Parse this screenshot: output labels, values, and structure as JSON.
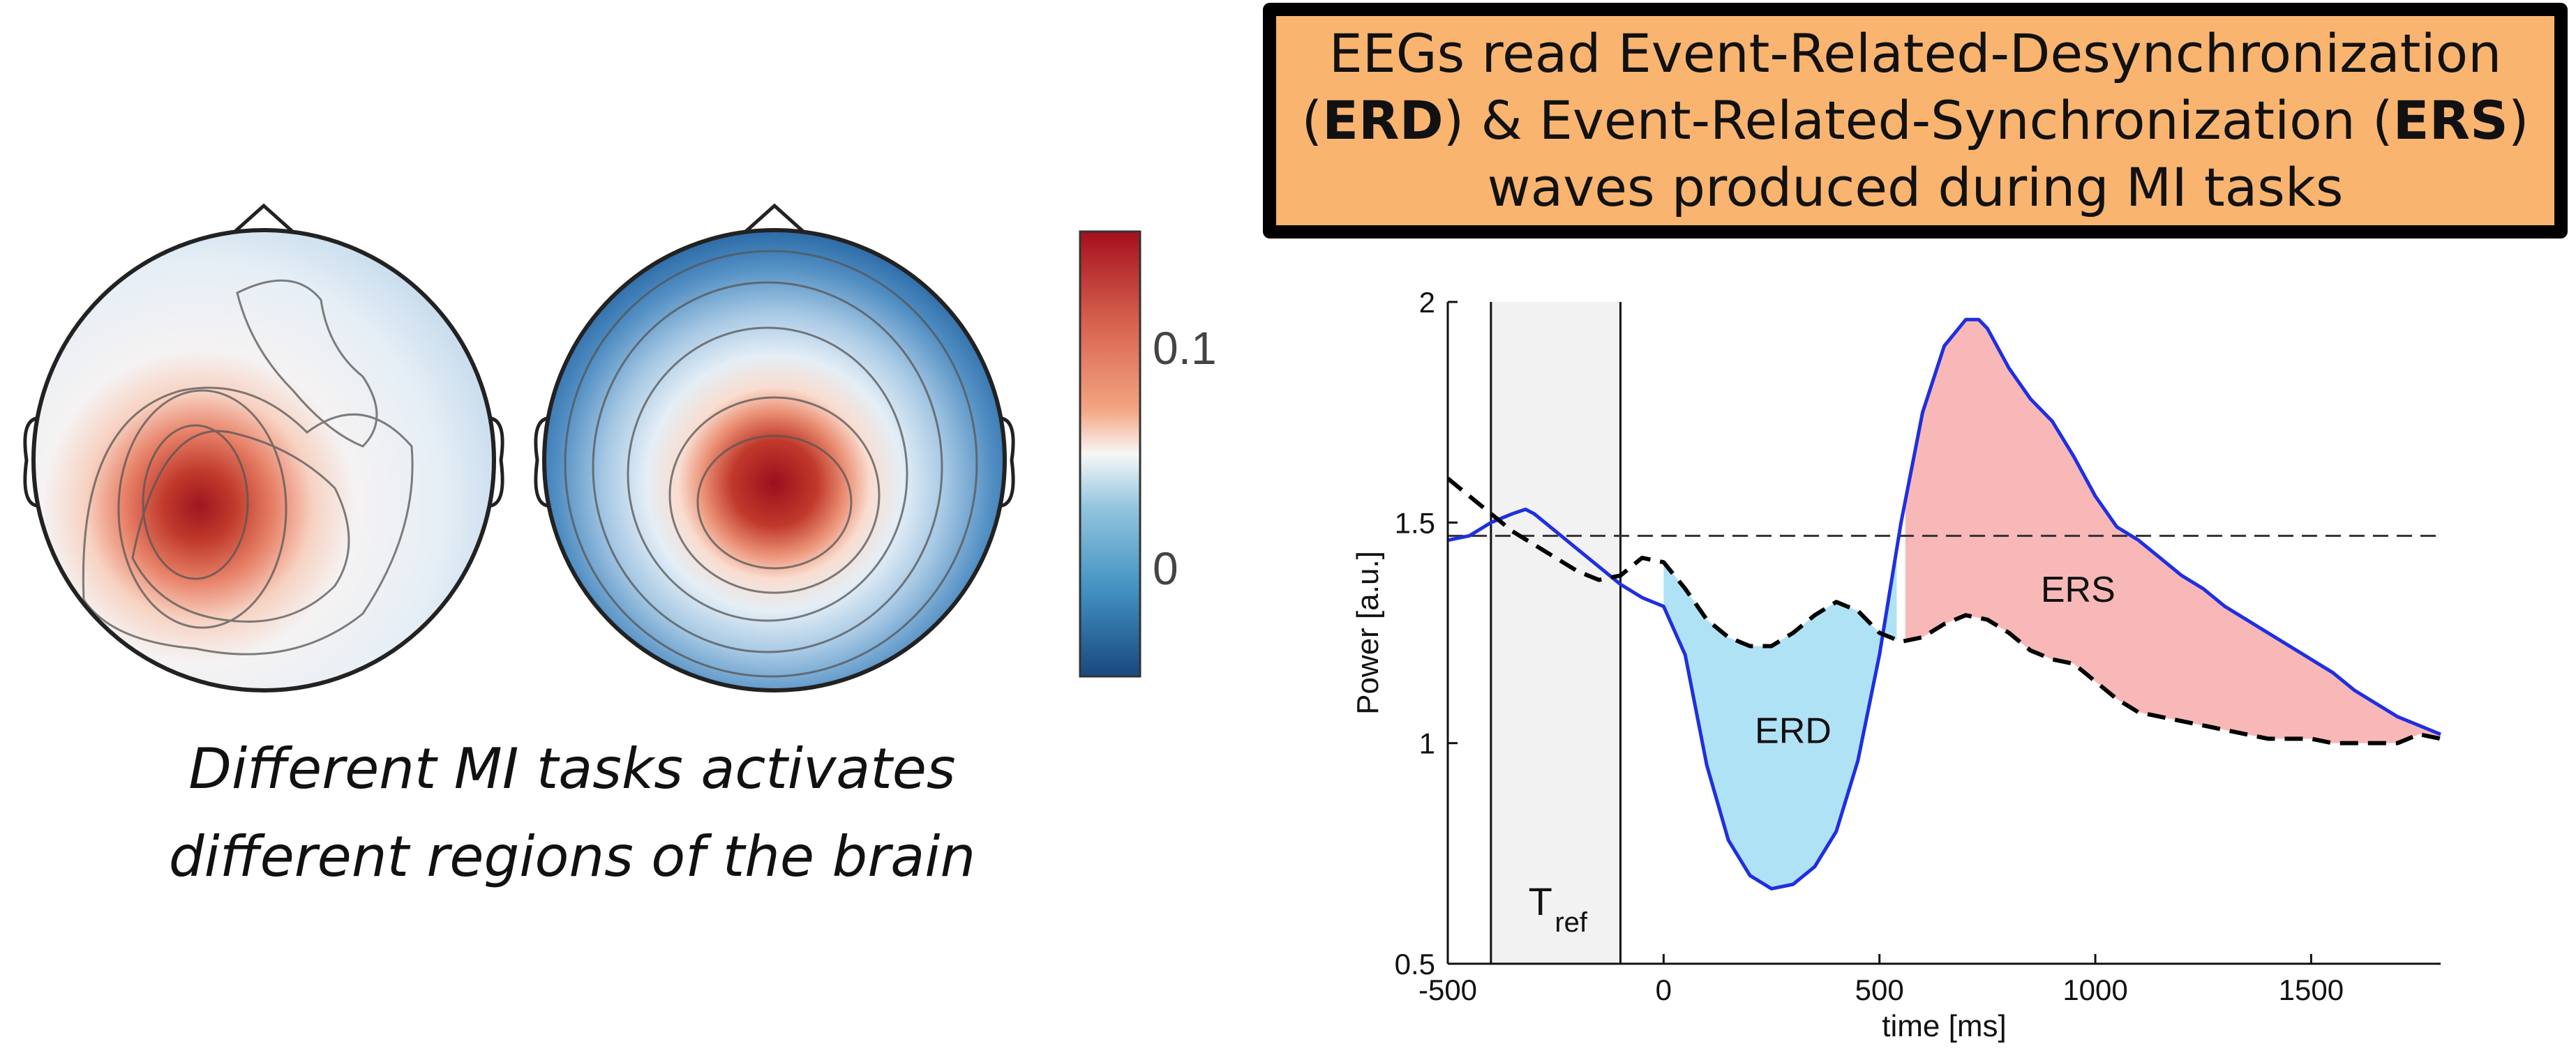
{
  "callout": {
    "line1": "EEGs read Event-Related-Desynchronization",
    "line2_open": "(",
    "line2_erd": "ERD",
    "line2_mid": ") & Event-Related-Synchronization (",
    "line2_ers": "ERS",
    "line2_close": ")",
    "line3": "waves produced during MI tasks"
  },
  "caption": {
    "line1": "Different MI tasks activates",
    "line2": "different regions of the brain"
  },
  "colorbar": {
    "tick_high": "0.1",
    "tick_low": "0",
    "colors": [
      "#B2182B",
      "#EF8A62",
      "#FDDBC7",
      "#F7F7F7",
      "#D1E5F0",
      "#67A9CF",
      "#2166AC"
    ]
  },
  "chart_data": {
    "type": "line",
    "xlabel": "time [ms]",
    "ylabel": "Power [a.u.]",
    "xlim": [
      -500,
      1800
    ],
    "ylim": [
      0.5,
      2
    ],
    "xticks": [
      -500,
      0,
      500,
      1000,
      1500
    ],
    "yticks": [
      0.5,
      1,
      1.5,
      2
    ],
    "ytick_labels": [
      "0.5",
      "1",
      "1.5",
      "2"
    ],
    "reference_level": 1.47,
    "reference_window": {
      "start": -400,
      "end": -100,
      "label_main": "T",
      "label_sub": "ref"
    },
    "series": [
      {
        "style": "solid",
        "color": "#1F2FE0",
        "x": [
          -500,
          -450,
          -400,
          -350,
          -320,
          -300,
          -250,
          -200,
          -150,
          -100,
          -50,
          0,
          50,
          100,
          150,
          200,
          250,
          300,
          350,
          400,
          450,
          500,
          550,
          600,
          650,
          700,
          730,
          750,
          800,
          850,
          900,
          950,
          1000,
          1050,
          1100,
          1150,
          1200,
          1250,
          1300,
          1350,
          1400,
          1450,
          1500,
          1550,
          1600,
          1650,
          1700,
          1750,
          1800
        ],
        "y": [
          1.46,
          1.47,
          1.5,
          1.52,
          1.53,
          1.52,
          1.48,
          1.44,
          1.4,
          1.36,
          1.33,
          1.31,
          1.2,
          0.95,
          0.78,
          0.7,
          0.67,
          0.68,
          0.72,
          0.8,
          0.96,
          1.2,
          1.5,
          1.75,
          1.9,
          1.96,
          1.96,
          1.94,
          1.85,
          1.78,
          1.73,
          1.65,
          1.56,
          1.49,
          1.46,
          1.42,
          1.38,
          1.35,
          1.31,
          1.28,
          1.25,
          1.22,
          1.19,
          1.16,
          1.12,
          1.09,
          1.06,
          1.04,
          1.02
        ]
      },
      {
        "style": "dashed",
        "color": "#000000",
        "x": [
          -500,
          -450,
          -400,
          -350,
          -300,
          -250,
          -200,
          -150,
          -100,
          -50,
          0,
          50,
          100,
          150,
          200,
          250,
          300,
          350,
          400,
          450,
          500,
          550,
          600,
          650,
          700,
          750,
          800,
          850,
          900,
          950,
          1000,
          1050,
          1100,
          1150,
          1200,
          1250,
          1300,
          1350,
          1400,
          1450,
          1500,
          1550,
          1600,
          1650,
          1700,
          1750,
          1800
        ],
        "y": [
          1.6,
          1.56,
          1.52,
          1.48,
          1.45,
          1.42,
          1.39,
          1.37,
          1.38,
          1.42,
          1.41,
          1.35,
          1.28,
          1.24,
          1.22,
          1.22,
          1.25,
          1.29,
          1.32,
          1.3,
          1.25,
          1.23,
          1.24,
          1.27,
          1.29,
          1.28,
          1.25,
          1.21,
          1.19,
          1.18,
          1.14,
          1.1,
          1.07,
          1.06,
          1.05,
          1.04,
          1.03,
          1.02,
          1.01,
          1.01,
          1.01,
          1.0,
          1.0,
          1.0,
          1.0,
          1.02,
          1.01
        ]
      }
    ],
    "fills": [
      {
        "label": "ERD",
        "color": "#B0E2F5",
        "from": 0,
        "to": 540,
        "label_x": 300,
        "label_y": 1.0
      },
      {
        "label": "ERS",
        "color": "#F8B8B8",
        "from": 560,
        "to": 1800,
        "label_x": 960,
        "label_y": 1.32
      }
    ]
  }
}
